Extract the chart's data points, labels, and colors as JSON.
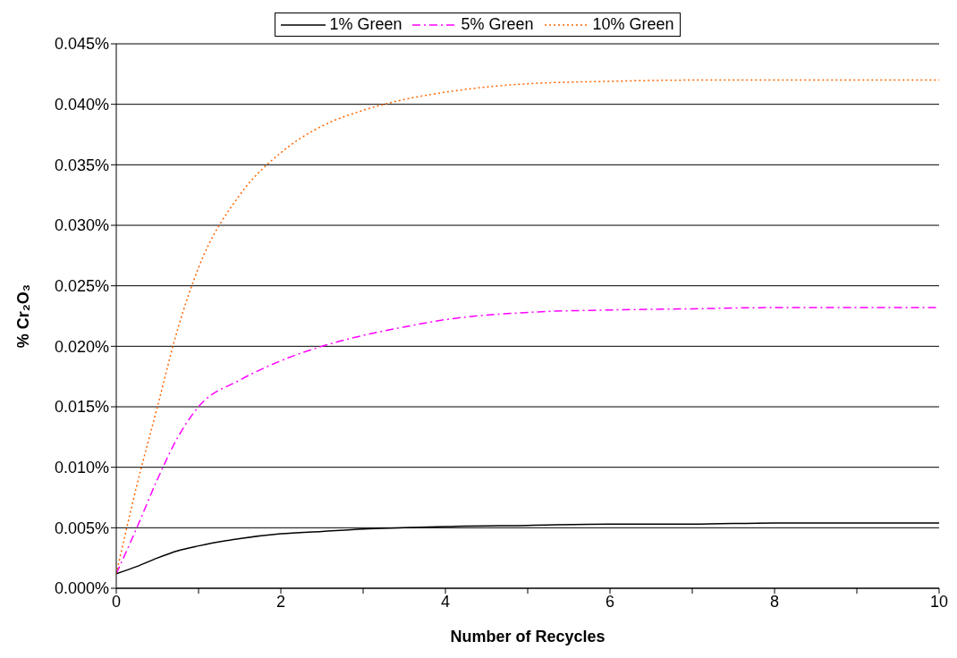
{
  "chart_data": {
    "type": "line",
    "xlabel": "Number of Recycles",
    "ylabel": "% Cr₂O₃",
    "x": [
      0,
      0.25,
      0.5,
      0.75,
      1,
      1.5,
      2,
      2.5,
      3,
      3.5,
      4,
      5,
      6,
      7,
      8,
      9,
      10
    ],
    "series": [
      {
        "name": "1% Green",
        "color": "#000000",
        "line_style": "solid",
        "values": [
          0.0012,
          0.0018,
          0.0025,
          0.0031,
          0.0035,
          0.0041,
          0.0045,
          0.0047,
          0.0049,
          0.005,
          0.0051,
          0.0052,
          0.0053,
          0.0053,
          0.0054,
          0.0054,
          0.0054
        ]
      },
      {
        "name": "5% Green",
        "color": "#ff00ff",
        "line_style": "dashed",
        "values": [
          0.0012,
          0.005,
          0.009,
          0.0125,
          0.015,
          0.0172,
          0.0188,
          0.02,
          0.0209,
          0.0216,
          0.0222,
          0.0228,
          0.023,
          0.0231,
          0.0232,
          0.0232,
          0.0232
        ]
      },
      {
        "name": "10% Green",
        "color": "#ff6600",
        "line_style": "dotted",
        "values": [
          0.0012,
          0.0085,
          0.015,
          0.0215,
          0.0265,
          0.0325,
          0.036,
          0.0382,
          0.0395,
          0.0404,
          0.041,
          0.0417,
          0.0419,
          0.042,
          0.042,
          0.042,
          0.042
        ]
      }
    ],
    "xlim": [
      0,
      10
    ],
    "xticks": [
      0,
      {
        "value": 1,
        "label": null
      },
      2,
      {
        "value": 3,
        "label": null
      },
      4,
      {
        "value": 5,
        "label": null
      },
      6,
      {
        "value": 7,
        "label": null
      },
      8,
      {
        "value": 9,
        "label": null
      },
      10
    ],
    "ylim": [
      0,
      0.045
    ],
    "yticks": [
      {
        "value": 0,
        "label": "0.000%"
      },
      {
        "value": 0.005,
        "label": "0.005%"
      },
      {
        "value": 0.01,
        "label": "0.010%"
      },
      {
        "value": 0.015,
        "label": "0.015%"
      },
      {
        "value": 0.02,
        "label": "0.020%"
      },
      {
        "value": 0.025,
        "label": "0.025%"
      },
      {
        "value": 0.03,
        "label": "0.030%"
      },
      {
        "value": 0.035,
        "label": "0.035%"
      },
      {
        "value": 0.04,
        "label": "0.040%"
      },
      {
        "value": 0.045,
        "label": "0.045%"
      }
    ],
    "grid": "y",
    "legend": "top",
    "marker": "none"
  }
}
